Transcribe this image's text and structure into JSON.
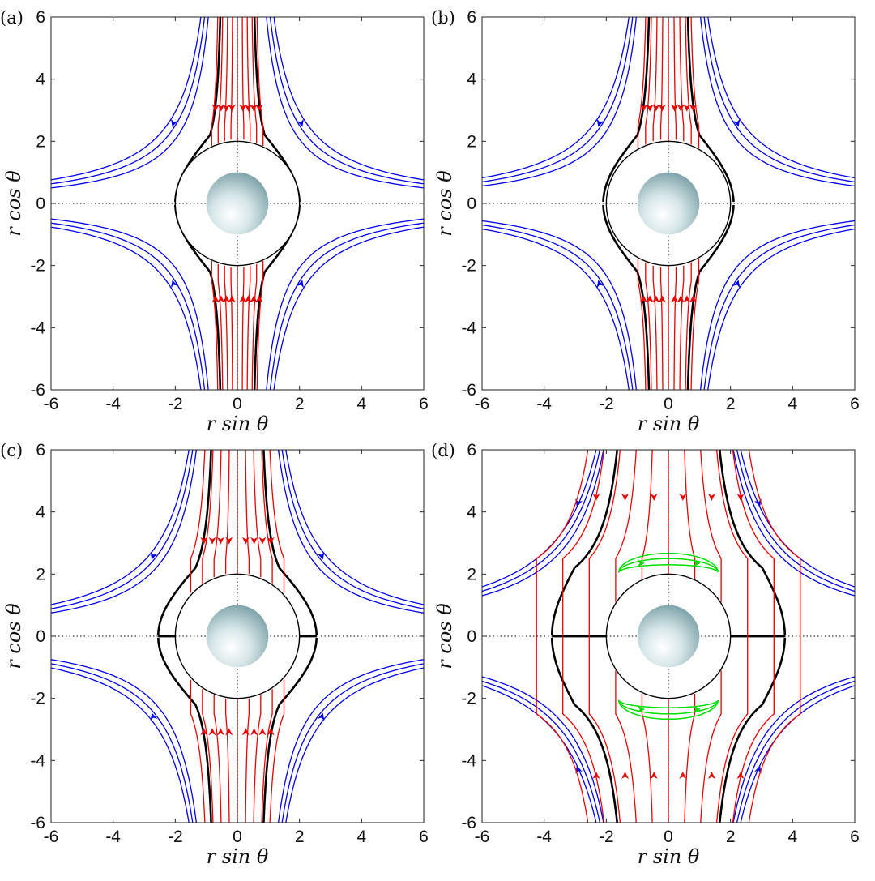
{
  "figure": {
    "xlabel": "r sin θ",
    "ylabel": "r cos θ",
    "colors": {
      "outer_streamlines": "#0000ee",
      "inner_streamlines": "#ee0000",
      "recirculation_streamlines": "#00dd00",
      "separatrix": "#000000",
      "sphere": "#a9c6cb"
    }
  },
  "panels": [
    {
      "label": "(a)",
      "capture_half_width": 0.75,
      "capture_radius": 2.0,
      "recirculation": false
    },
    {
      "label": "(b)",
      "capture_half_width": 0.85,
      "capture_radius": 2.1,
      "recirculation": false
    },
    {
      "label": "(c)",
      "capture_half_width": 1.15,
      "capture_radius": 2.55,
      "recirculation": false
    },
    {
      "label": "(d)",
      "capture_half_width": 1.95,
      "capture_radius": 3.75,
      "recirculation": true
    }
  ],
  "chart_data": {
    "type": "streamline",
    "xlim": [
      -6,
      6
    ],
    "ylim": [
      -6,
      6
    ],
    "xticks": [
      -6,
      -4,
      -2,
      0,
      2,
      4,
      6
    ],
    "yticks": [
      -6,
      -4,
      -2,
      0,
      2,
      4,
      6
    ],
    "cutoff_radius": 2,
    "sphere_radius": 1,
    "grid": "dotted axes at x=0 and y=0"
  }
}
